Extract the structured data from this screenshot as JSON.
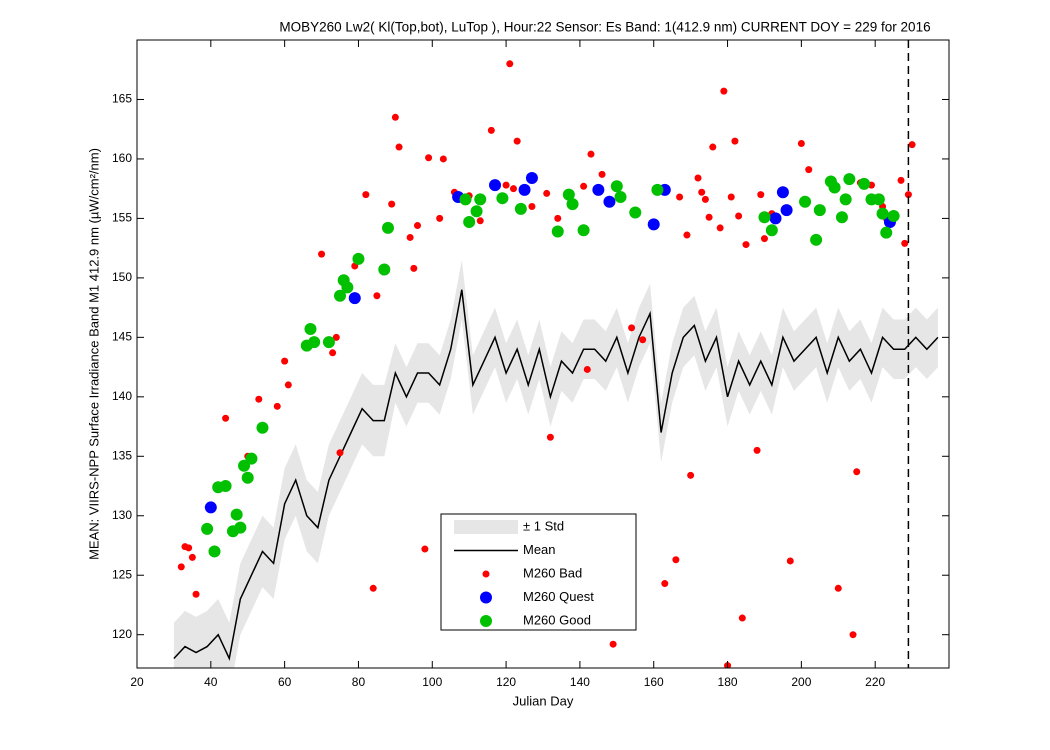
{
  "chart_data": {
    "type": "scatter",
    "title": "MOBY260   Lw2( Kl(Top,bot), LuTop ),   Hour:22 Sensor: Es Band: 1(412.9 nm)   CURRENT DOY = 229 for 2016",
    "xlabel": "Julian Day",
    "ylabel": "MEAN: VIIRS-NPP Surface Irradiance Band M1 412.9 nm (µW/cm²/nm)",
    "xlim": [
      20,
      240
    ],
    "ylim": [
      117.2,
      170
    ],
    "xticks": [
      20,
      40,
      60,
      80,
      100,
      120,
      140,
      160,
      180,
      200,
      220
    ],
    "yticks": [
      120,
      125,
      130,
      135,
      140,
      145,
      150,
      155,
      160,
      165
    ],
    "vline": 229,
    "x": [
      30,
      33,
      36,
      39,
      42,
      45,
      48,
      51,
      54,
      57,
      60,
      63,
      66,
      69,
      72,
      75,
      78,
      81,
      84,
      87,
      90,
      93,
      96,
      99,
      102,
      105,
      108,
      111,
      114,
      117,
      120,
      123,
      126,
      129,
      132,
      135,
      138,
      141,
      144,
      147,
      150,
      153,
      156,
      159,
      162,
      165,
      168,
      171,
      174,
      177,
      180,
      183,
      186,
      189,
      192,
      195,
      198,
      201,
      204,
      207,
      210,
      213,
      216,
      219,
      222,
      225,
      228,
      231,
      234,
      237
    ],
    "band": {
      "name": "± 1 Std",
      "color": "#e6e6e6",
      "upper": [
        121,
        122,
        121.5,
        122,
        123,
        121,
        126,
        128,
        130,
        129,
        134,
        136,
        133,
        132,
        136,
        138,
        140,
        142,
        141,
        141,
        144.5,
        142.5,
        144.5,
        144.5,
        143.5,
        146.5,
        151.5,
        143.5,
        145.5,
        147.5,
        144.5,
        146.5,
        143.5,
        146.5,
        142.5,
        145.5,
        144.5,
        146.5,
        146.5,
        145.5,
        147.5,
        144.5,
        147.5,
        149.5,
        139.5,
        144.5,
        147.5,
        148.5,
        145.5,
        147.5,
        142.5,
        145.5,
        143.5,
        145.5,
        143.5,
        147.5,
        145.5,
        146.5,
        147.5,
        144.5,
        147.5,
        145.5,
        146.5,
        144.5,
        147.5,
        146.5,
        146.5,
        147.5,
        146.5,
        147.5
      ],
      "lower": [
        115,
        116,
        115.5,
        116,
        117,
        115,
        120,
        122,
        124,
        123,
        128,
        130,
        127,
        126,
        130,
        132,
        134,
        136,
        135,
        135,
        139.5,
        137.5,
        139.5,
        139.5,
        138.5,
        141.5,
        146.5,
        138.5,
        140.5,
        142.5,
        139.5,
        141.5,
        138.5,
        141.5,
        137.5,
        140.5,
        139.5,
        141.5,
        141.5,
        140.5,
        142.5,
        139.5,
        142.5,
        144.5,
        134.5,
        139.5,
        142.5,
        143.5,
        140.5,
        142.5,
        137.5,
        140.5,
        138.5,
        140.5,
        138.5,
        142.5,
        140.5,
        141.5,
        142.5,
        139.5,
        142.5,
        140.5,
        141.5,
        139.5,
        142.5,
        141.5,
        141.5,
        142.5,
        141.5,
        142.5
      ]
    },
    "mean": {
      "name": "Mean",
      "color": "#000000",
      "values": [
        118,
        119,
        118.5,
        119,
        120,
        118,
        123,
        125,
        127,
        126,
        131,
        133,
        130,
        129,
        133,
        135,
        137,
        139,
        138,
        138,
        142,
        140,
        142,
        142,
        141,
        144,
        149,
        141,
        143,
        145,
        142,
        144,
        141,
        144,
        140,
        143,
        142,
        144,
        144,
        143,
        145,
        142,
        145,
        147,
        137,
        142,
        145,
        146,
        143,
        145,
        140,
        143,
        141,
        143,
        141,
        145,
        143,
        144,
        145,
        142,
        145,
        143,
        144,
        142,
        145,
        144,
        144,
        145,
        144,
        145
      ]
    },
    "series": [
      {
        "name": "M260 Bad",
        "color": "#ff0000",
        "size": 3.5,
        "x": [
          32,
          33,
          34,
          35,
          36,
          44,
          50,
          53,
          58,
          60,
          61,
          70,
          73,
          74,
          75,
          79,
          82,
          84,
          85,
          89,
          90,
          91,
          94,
          95,
          96,
          98,
          99,
          102,
          103,
          106,
          110,
          113,
          116,
          120,
          121,
          122,
          123,
          127,
          131,
          132,
          134,
          141,
          142,
          143,
          146,
          149,
          154,
          157,
          163,
          166,
          167,
          169,
          170,
          172,
          173,
          174,
          175,
          176,
          178,
          179,
          180,
          181,
          182,
          183,
          184,
          185,
          188,
          189,
          190,
          192,
          197,
          200,
          202,
          210,
          214,
          215,
          216,
          219,
          222,
          223,
          227,
          228,
          229,
          230
        ],
        "values": [
          125.7,
          127.4,
          127.3,
          126.5,
          123.4,
          138.2,
          135,
          139.8,
          139.2,
          143,
          141,
          152,
          143.7,
          145,
          135.3,
          151,
          157,
          123.9,
          148.5,
          156.2,
          163.5,
          161,
          153.4,
          150.8,
          154.4,
          127.2,
          160.1,
          155,
          160,
          157.2,
          156.9,
          154.8,
          162.4,
          157.8,
          168,
          157.5,
          161.5,
          156,
          157.1,
          136.6,
          155,
          157.7,
          142.3,
          160.4,
          158.7,
          119.2,
          145.8,
          144.8,
          124.3,
          126.3,
          156.8,
          153.6,
          133.4,
          158.4,
          157.2,
          156.6,
          155.1,
          161,
          154.2,
          165.7,
          117.4,
          156.8,
          161.5,
          155.2,
          121.4,
          152.8,
          135.5,
          157,
          153.3,
          155.4,
          126.2,
          161.3,
          159.1,
          123.9,
          120,
          133.7,
          158,
          157.8,
          156,
          155,
          158.2,
          152.9,
          157,
          161.2
        ]
      },
      {
        "name": "M260 Quest",
        "color": "#0000ff",
        "size": 6,
        "x": [
          40,
          79,
          107,
          117,
          125,
          127,
          145,
          148,
          160,
          163,
          193,
          195,
          196,
          224
        ],
        "values": [
          130.7,
          148.3,
          156.8,
          157.8,
          157.4,
          158.4,
          157.4,
          156.4,
          154.5,
          157.4,
          155,
          157.2,
          155.7,
          154.7
        ]
      },
      {
        "name": "M260 Good",
        "color": "#00c000",
        "size": 6,
        "x": [
          39,
          41,
          42,
          44,
          46,
          47,
          48,
          49,
          50,
          51,
          54,
          66,
          67,
          68,
          72,
          75,
          76,
          77,
          80,
          87,
          88,
          109,
          110,
          112,
          113,
          119,
          124,
          134,
          137,
          138,
          141,
          150,
          151,
          155,
          161,
          190,
          192,
          201,
          204,
          205,
          208,
          209,
          211,
          212,
          213,
          217,
          219,
          221,
          222,
          223,
          225
        ],
        "values": [
          128.9,
          127,
          132.4,
          132.5,
          128.7,
          130.1,
          129,
          134.2,
          133.2,
          134.8,
          137.4,
          144.3,
          145.7,
          144.6,
          144.6,
          148.5,
          149.8,
          149.2,
          151.6,
          150.7,
          154.2,
          156.6,
          154.7,
          155.6,
          156.6,
          156.7,
          155.8,
          153.9,
          157,
          156.2,
          154,
          157.7,
          156.8,
          155.5,
          157.4,
          155.1,
          154,
          156.4,
          153.2,
          155.7,
          158.1,
          157.6,
          155.1,
          156.6,
          158.3,
          157.9,
          156.6,
          156.6,
          155.4,
          153.8,
          155.2
        ]
      }
    ]
  }
}
